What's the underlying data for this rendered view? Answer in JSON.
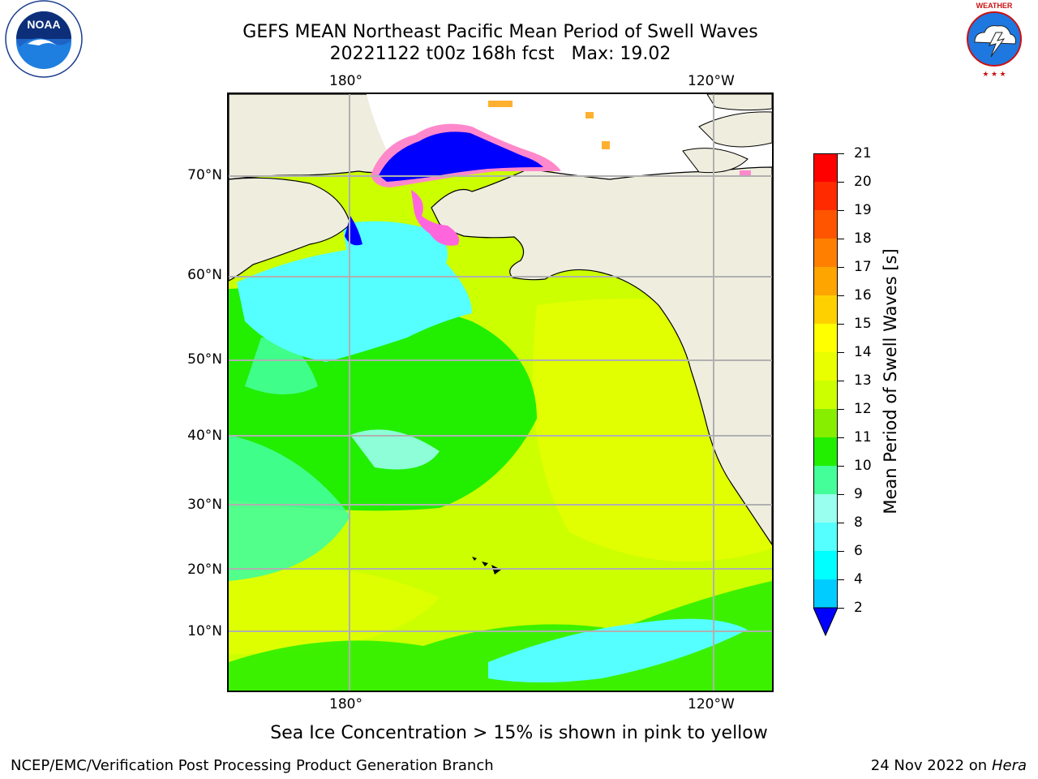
{
  "header": {
    "title_line1": "GEFS MEAN Northeast Pacific Mean Period of Swell Waves",
    "title_line2": "20221122 t00z 168h fcst   Max: 19.02"
  },
  "logos": {
    "left": {
      "name": "NOAA",
      "ring_text": "NATIONAL OCEANIC AND ATMOSPHERIC ADMINISTRATION · U.S. DEPARTMENT OF COMMERCE"
    },
    "right": {
      "name": "NATIONAL WEATHER SERVICE"
    }
  },
  "map": {
    "lon_labels_top": [
      "180°",
      "120°W"
    ],
    "lon_labels_bottom": [
      "180°",
      "120°W"
    ],
    "lat_labels": [
      "70°N",
      "60°N",
      "50°N",
      "40°N",
      "30°N",
      "20°N",
      "10°N"
    ],
    "land_color": "#efedde",
    "ocean_fields": {
      "low": "#44ff99",
      "mid": "#22ee00",
      "high": "#ccff00",
      "higher": "#e9ff00",
      "cyan": "#55ffff",
      "blue": "#0000ff",
      "ice_pink": "#ff44dd",
      "ice_orange": "#ffb030"
    }
  },
  "colorbar": {
    "title": "Mean Period of Swell Waves [s]",
    "ticks": [
      "21",
      "20",
      "19",
      "18",
      "17",
      "16",
      "15",
      "14",
      "13",
      "12",
      "11",
      "10",
      "9",
      "8",
      "6",
      "4",
      "2"
    ],
    "colors_top_to_bottom": [
      "#ff0000",
      "#ff2a00",
      "#ff5500",
      "#ff8000",
      "#ffa500",
      "#ffd000",
      "#ffff00",
      "#e9ff00",
      "#ccff00",
      "#88ee00",
      "#22ee00",
      "#44ff99",
      "#99ffee",
      "#55ffff",
      "#00ffff",
      "#00ccff",
      "#0080ff"
    ],
    "extend_color": "#0000ff"
  },
  "note": "Sea Ice Concentration > 15% is shown in pink to yellow",
  "footer": {
    "left": "NCEP/EMC/Verification Post Processing Product Generation Branch",
    "right_date": "24 Nov 2022 on",
    "right_machine": "Hera"
  }
}
